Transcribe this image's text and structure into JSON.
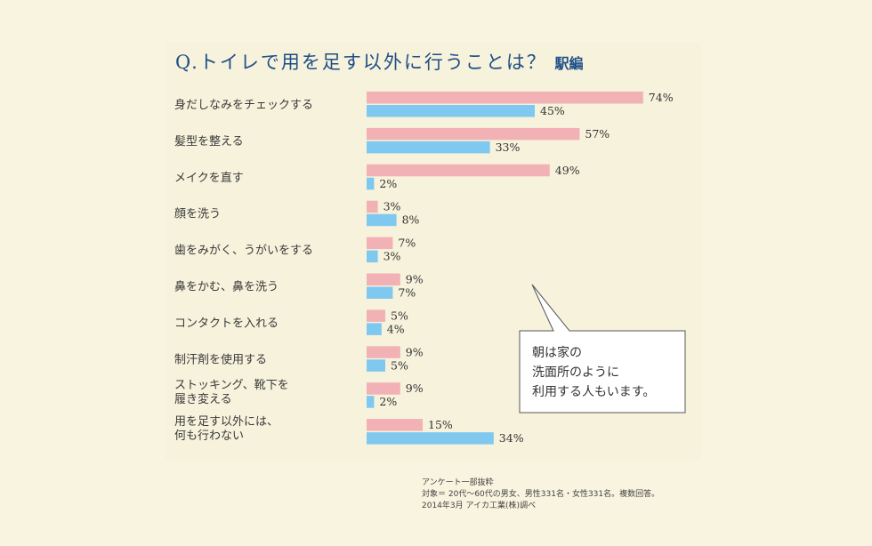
{
  "title": {
    "main": "Q.トイレで用を足す以外に行うことは？",
    "sub": "駅編"
  },
  "bubble": {
    "text": "朝は家の\n洗面所のように\n利用する人もいます。"
  },
  "footnote": {
    "text": "アンケート一部抜粋\n対象＝ 20代〜60代の男女、男性331名・女性331名。複数回答。\n2014年3月 アイカ工業(株)調べ"
  },
  "colors": {
    "series_pink": "#f2b1b4",
    "series_blue": "#7fc8ef",
    "title": "#1e4f86"
  },
  "chart_data": {
    "type": "bar",
    "orientation": "horizontal",
    "categories": [
      "身だしなみをチェックする",
      "髪型を整える",
      "メイクを直す",
      "顔を洗う",
      "歯をみがく、うがいをする",
      "鼻をかむ、鼻を洗う",
      "コンタクトを入れる",
      "制汗剤を使用する",
      "ストッキング、靴下を\n履き変える",
      "用を足す以外には、\n何も行わない"
    ],
    "series": [
      {
        "color": "#f2b1b4",
        "values": [
          74,
          57,
          49,
          3,
          7,
          9,
          5,
          9,
          9,
          15
        ]
      },
      {
        "color": "#7fc8ef",
        "values": [
          45,
          33,
          2,
          8,
          3,
          7,
          4,
          5,
          2,
          34
        ]
      }
    ],
    "value_suffix": "%",
    "xlim": [
      0,
      100
    ],
    "grid": false,
    "legend": "none"
  }
}
